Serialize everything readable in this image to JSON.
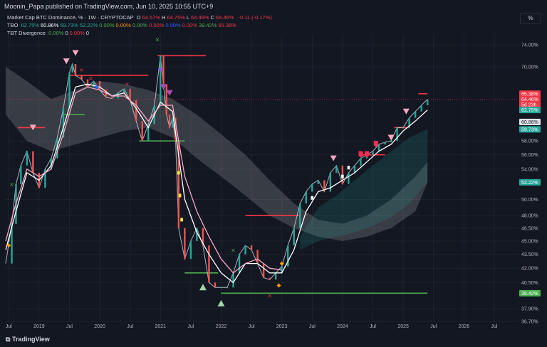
{
  "header": {
    "published": "Moonin_Papa published on TradingView.com, Jun 10, 2025 10:55 UTC+9",
    "percent_button": "%",
    "brand": "TradingView"
  },
  "legend": {
    "symbol": "Market Cap BTC Dominance, % · 1W · CRYPTOCAP",
    "ohlc": [
      {
        "k": "O",
        "v": "64.57%"
      },
      {
        "k": "H",
        "v": "64.75%"
      },
      {
        "k": "L",
        "v": "64.46%"
      },
      {
        "k": "C",
        "v": "64.46%"
      }
    ],
    "change": "-0.11 (-0.17%)",
    "tbo_name": "TBO",
    "tbo_values": [
      {
        "v": "62.75%",
        "color": "#26a69a"
      },
      {
        "v": "60.86%",
        "color": "#ffffff"
      },
      {
        "v": "59.73%",
        "color": "#26a69a"
      },
      {
        "v": "52.22%",
        "color": "#26a69a"
      },
      {
        "v": "0.00%",
        "color": "#4caf50"
      },
      {
        "v": "0.00%",
        "color": "#ff9800"
      },
      {
        "v": "0.00%",
        "color": "#4caf50"
      },
      {
        "v": "0.00%",
        "color": "#f23645"
      },
      {
        "v": "0.00%",
        "color": "#2962ff"
      },
      {
        "v": "0.00%",
        "color": "#f23645"
      },
      {
        "v": "39.42%",
        "color": "#4caf50"
      },
      {
        "v": "65.38%",
        "color": "#f23645"
      }
    ],
    "tbt_name": "TBT Divergence",
    "tbt_values": [
      {
        "v": "0.00%",
        "color": "#4caf50"
      },
      {
        "v": "0",
        "color": "#d1d4dc"
      },
      {
        "v": "0.00%",
        "color": "#f23645"
      },
      {
        "v": "0",
        "color": "#d1d4dc"
      }
    ]
  },
  "chart_data": {
    "type": "line",
    "title": "Market Cap BTC Dominance, % · 1W · CRYPTOCAP",
    "y_scale": "log",
    "ylim": [
      36.7,
      75.5
    ],
    "xlim": [
      2018.45,
      2026.9
    ],
    "x_ticks": [
      {
        "x": 2018.5,
        "label": "Jul"
      },
      {
        "x": 2019.0,
        "label": "2019"
      },
      {
        "x": 2019.5,
        "label": "Jul"
      },
      {
        "x": 2020.0,
        "label": "2020"
      },
      {
        "x": 2020.5,
        "label": "Jul"
      },
      {
        "x": 2021.0,
        "label": "2021"
      },
      {
        "x": 2021.5,
        "label": "Jul"
      },
      {
        "x": 2022.0,
        "label": "2022"
      },
      {
        "x": 2022.5,
        "label": "Jul"
      },
      {
        "x": 2023.0,
        "label": "2023"
      },
      {
        "x": 2023.5,
        "label": "Jul"
      },
      {
        "x": 2024.0,
        "label": "2024"
      },
      {
        "x": 2024.5,
        "label": "Jul"
      },
      {
        "x": 2025.0,
        "label": "2025"
      },
      {
        "x": 2025.5,
        "label": "Jul"
      },
      {
        "x": 2026.0,
        "label": "2026"
      },
      {
        "x": 2026.5,
        "label": "Jul"
      }
    ],
    "y_ticks": [
      {
        "y": 74.0,
        "label": "74.00%"
      },
      {
        "y": 70.0,
        "label": "70.00%"
      },
      {
        "y": 58.0,
        "label": "58.00%"
      },
      {
        "y": 56.0,
        "label": "56.00%"
      },
      {
        "y": 54.0,
        "label": "54.00%"
      },
      {
        "y": 50.0,
        "label": "50.00%"
      },
      {
        "y": 48.0,
        "label": "48.00%"
      },
      {
        "y": 46.5,
        "label": "46.50%"
      },
      {
        "y": 45.0,
        "label": "45.00%"
      },
      {
        "y": 43.5,
        "label": "43.50%"
      },
      {
        "y": 42.0,
        "label": "42.00%"
      },
      {
        "y": 40.5,
        "label": "40.50%"
      },
      {
        "y": 37.9,
        "label": "37.90%"
      },
      {
        "y": 36.7,
        "label": "36.70%"
      }
    ],
    "price_labels": [
      {
        "y": 65.38,
        "label": "65.38%",
        "bg": "#f23645",
        "fg": "#ffffff"
      },
      {
        "y": 64.46,
        "label": "64.46%",
        "bg": "#f23645",
        "fg": "#ffffff"
      },
      {
        "y": 63.6,
        "label": "5d 23h",
        "bg": "#f23645",
        "fg": "#ffffff"
      },
      {
        "y": 62.75,
        "label": "62.75%",
        "bg": "#26a69a",
        "fg": "#ffffff"
      },
      {
        "y": 60.86,
        "label": "60.86%",
        "bg": "#e0e3eb",
        "fg": "#131722"
      },
      {
        "y": 59.73,
        "label": "59.73%",
        "bg": "#26a69a",
        "fg": "#ffffff"
      },
      {
        "y": 52.22,
        "label": "52.22%",
        "bg": "#26a69a",
        "fg": "#ffffff"
      },
      {
        "y": 39.42,
        "label": "39.42%",
        "bg": "#4caf50",
        "fg": "#ffffff"
      }
    ],
    "last_price": 64.46,
    "series": [
      {
        "name": "BTC Dominance",
        "role": "price",
        "color": "#d1d4dc",
        "x": [
          2018.45,
          2018.55,
          2018.62,
          2018.7,
          2018.8,
          2018.9,
          2019.0,
          2019.1,
          2019.2,
          2019.3,
          2019.4,
          2019.5,
          2019.55,
          2019.6,
          2019.7,
          2019.8,
          2019.9,
          2020.0,
          2020.1,
          2020.2,
          2020.3,
          2020.4,
          2020.5,
          2020.6,
          2020.7,
          2020.8,
          2020.9,
          2021.0,
          2021.05,
          2021.1,
          2021.15,
          2021.2,
          2021.25,
          2021.3,
          2021.4,
          2021.5,
          2021.6,
          2021.7,
          2021.8,
          2021.9,
          2022.0,
          2022.1,
          2022.2,
          2022.3,
          2022.4,
          2022.5,
          2022.6,
          2022.7,
          2022.8,
          2022.9,
          2023.0,
          2023.1,
          2023.2,
          2023.3,
          2023.4,
          2023.5,
          2023.6,
          2023.7,
          2023.8,
          2023.9,
          2024.0,
          2024.1,
          2024.2,
          2024.3,
          2024.4,
          2024.5,
          2024.6,
          2024.7,
          2024.8,
          2024.9,
          2025.0,
          2025.1,
          2025.2,
          2025.3,
          2025.4
        ],
        "y": [
          42.5,
          47.0,
          52.0,
          54.5,
          56.5,
          53.5,
          51.5,
          54.0,
          55.5,
          58.5,
          63.0,
          69.0,
          70.5,
          68.5,
          67.8,
          66.5,
          67.5,
          66.0,
          64.8,
          64.6,
          65.5,
          66.2,
          64.3,
          61.0,
          58.0,
          60.5,
          63.5,
          72.0,
          67.0,
          62.0,
          60.0,
          61.5,
          58.0,
          46.5,
          43.0,
          45.0,
          46.5,
          44.5,
          40.5,
          40.0,
          40.0,
          40.0,
          41.5,
          43.5,
          44.5,
          44.0,
          42.5,
          41.0,
          40.8,
          41.5,
          42.2,
          44.5,
          46.5,
          49.5,
          51.0,
          52.0,
          52.5,
          51.0,
          53.5,
          54.5,
          52.0,
          53.5,
          54.5,
          55.5,
          56.0,
          56.5,
          57.5,
          57.8,
          58.0,
          60.0,
          60.0,
          61.5,
          62.5,
          63.5,
          64.46
        ]
      },
      {
        "name": "TBO Fast",
        "role": "fast",
        "color": "#ffffff",
        "x": [
          2018.45,
          2018.6,
          2018.8,
          2019.0,
          2019.2,
          2019.4,
          2019.6,
          2019.8,
          2020.0,
          2020.2,
          2020.4,
          2020.6,
          2020.8,
          2021.0,
          2021.2,
          2021.4,
          2021.6,
          2021.8,
          2022.0,
          2022.2,
          2022.4,
          2022.6,
          2022.8,
          2023.0,
          2023.2,
          2023.4,
          2023.6,
          2023.8,
          2024.0,
          2024.2,
          2024.4,
          2024.6,
          2024.8,
          2025.0,
          2025.2,
          2025.4
        ],
        "y": [
          44.0,
          48.0,
          53.5,
          52.5,
          54.5,
          60.0,
          66.5,
          67.0,
          66.5,
          65.0,
          65.5,
          63.0,
          60.0,
          64.0,
          62.5,
          50.0,
          46.0,
          43.5,
          41.5,
          40.5,
          42.5,
          42.5,
          41.5,
          41.5,
          44.0,
          48.5,
          51.0,
          51.5,
          52.5,
          53.5,
          55.0,
          56.5,
          57.5,
          59.5,
          61.0,
          62.75
        ]
      },
      {
        "name": "TBO Slow",
        "role": "slow",
        "color": "#f7a8c4",
        "x": [
          2018.45,
          2018.6,
          2018.8,
          2019.0,
          2019.2,
          2019.4,
          2019.6,
          2019.8,
          2020.0,
          2020.2,
          2020.4,
          2020.6,
          2020.8,
          2021.0,
          2021.2,
          2021.4,
          2021.6,
          2021.8,
          2022.0,
          2022.2,
          2022.4,
          2022.6,
          2022.8,
          2023.0
        ],
        "y": [
          45.0,
          49.0,
          54.0,
          53.0,
          54.0,
          59.0,
          65.5,
          66.5,
          66.0,
          65.0,
          65.0,
          63.5,
          61.0,
          63.5,
          63.5,
          53.0,
          48.5,
          45.5,
          43.0,
          41.5,
          42.5,
          43.0,
          42.0,
          41.8
        ]
      }
    ],
    "bands": [
      {
        "role": "upper-cloud",
        "color": "#ffffff",
        "opacity": 0.16,
        "x": [
          2018.45,
          2018.8,
          2019.2,
          2019.6,
          2020.0,
          2020.4,
          2020.8,
          2021.2,
          2021.6,
          2022.0,
          2022.4,
          2022.8,
          2023.2,
          2023.6,
          2024.0,
          2024.4,
          2024.8,
          2025.2,
          2025.4
        ],
        "y1": [
          70.0,
          67.5,
          64.5,
          66.0,
          67.5,
          67.0,
          66.0,
          64.5,
          62.0,
          59.0,
          56.0,
          52.5,
          49.5,
          47.5,
          47.0,
          48.0,
          50.0,
          53.0,
          55.0
        ],
        "y2": [
          62.0,
          58.0,
          56.5,
          57.5,
          58.5,
          59.5,
          60.0,
          58.5,
          55.5,
          53.0,
          50.5,
          48.0,
          46.5,
          45.5,
          45.0,
          45.5,
          46.5,
          48.5,
          52.22
        ]
      },
      {
        "role": "trend-cloud",
        "color": "#26a69a",
        "opacity": 0.18,
        "x": [
          2023.3,
          2023.6,
          2023.9,
          2024.2,
          2024.5,
          2024.8,
          2025.1,
          2025.4
        ],
        "y1": [
          45.5,
          49.0,
          50.5,
          52.5,
          54.5,
          56.5,
          58.5,
          59.73
        ],
        "y2": [
          44.0,
          45.0,
          45.5,
          46.0,
          46.8,
          47.8,
          49.5,
          52.22
        ]
      }
    ],
    "levels": [
      {
        "x1": 2018.65,
        "x2": 2019.1,
        "y": 60.0,
        "color": "#f23645"
      },
      {
        "x1": 2019.5,
        "x2": 2020.8,
        "y": 68.5,
        "color": "#f23645"
      },
      {
        "x1": 2019.4,
        "x2": 2019.75,
        "y": 62.0,
        "color": "#4caf50"
      },
      {
        "x1": 2020.65,
        "x2": 2021.4,
        "y": 58.0,
        "color": "#4caf50"
      },
      {
        "x1": 2020.95,
        "x2": 2021.75,
        "y": 72.0,
        "color": "#f23645"
      },
      {
        "x1": 2021.4,
        "x2": 2021.95,
        "y": 41.5,
        "color": "#4caf50"
      },
      {
        "x1": 2022.4,
        "x2": 2023.3,
        "y": 48.0,
        "color": "#f23645"
      },
      {
        "x1": 2022.0,
        "x2": 2025.4,
        "y": 39.42,
        "color": "#4caf50"
      },
      {
        "x1": 2024.3,
        "x2": 2024.7,
        "y": 56.0,
        "color": "#f23645"
      },
      {
        "x1": 2024.85,
        "x2": 2025.1,
        "y": 60.0,
        "color": "#f23645"
      },
      {
        "x1": 2025.25,
        "x2": 2025.4,
        "y": 65.38,
        "color": "#f23645"
      }
    ],
    "markers": [
      {
        "x": 2018.55,
        "y": 52.0,
        "shape": "x",
        "color": "#4caf50"
      },
      {
        "x": 2018.5,
        "y": 44.5,
        "shape": "diamond",
        "color": "#ff9800"
      },
      {
        "x": 2018.9,
        "y": 60.0,
        "shape": "tri-down",
        "color": "#f7a8c4"
      },
      {
        "x": 2019.45,
        "y": 71.0,
        "shape": "tri-down",
        "color": "#f7a8c4"
      },
      {
        "x": 2019.6,
        "y": 72.5,
        "shape": "tri-down",
        "color": "#f7a8c4"
      },
      {
        "x": 2019.7,
        "y": 69.5,
        "shape": "x",
        "color": "#f23645"
      },
      {
        "x": 2019.85,
        "y": 68.0,
        "shape": "x",
        "color": "#f23645"
      },
      {
        "x": 2019.95,
        "y": 66.5,
        "shape": "diamond",
        "color": "#2962ff"
      },
      {
        "x": 2020.1,
        "y": 66.0,
        "shape": "x",
        "color": "#f23645"
      },
      {
        "x": 2020.45,
        "y": 67.0,
        "shape": "x",
        "color": "#f23645"
      },
      {
        "x": 2020.95,
        "y": 75.0,
        "shape": "x",
        "color": "#4caf50"
      },
      {
        "x": 2021.0,
        "y": 69.5,
        "shape": "diamond",
        "color": "#7b61ff"
      },
      {
        "x": 2021.05,
        "y": 66.5,
        "shape": "tri-down",
        "color": "#ab47bc"
      },
      {
        "x": 2021.15,
        "y": 65.5,
        "shape": "tri-down",
        "color": "#ab47bc"
      },
      {
        "x": 2021.3,
        "y": 53.5,
        "shape": "square",
        "color": "#ffeb3b"
      },
      {
        "x": 2021.32,
        "y": 50.5,
        "shape": "square",
        "color": "#ffeb3b"
      },
      {
        "x": 2021.35,
        "y": 47.5,
        "shape": "square",
        "color": "#ffeb3b"
      },
      {
        "x": 2021.7,
        "y": 40.0,
        "shape": "tri-up",
        "color": "#a5d6a7"
      },
      {
        "x": 2022.0,
        "y": 38.4,
        "shape": "tri-up",
        "color": "#a5d6a7"
      },
      {
        "x": 2022.2,
        "y": 44.0,
        "shape": "x",
        "color": "#4caf50"
      },
      {
        "x": 2022.8,
        "y": 39.2,
        "shape": "x",
        "color": "#f23645"
      },
      {
        "x": 2022.95,
        "y": 40.2,
        "shape": "diamond",
        "color": "#ff9800"
      },
      {
        "x": 2023.0,
        "y": 42.5,
        "shape": "diamond",
        "color": "#ff9800"
      },
      {
        "x": 2023.1,
        "y": 42.5,
        "shape": "x",
        "color": "#4caf50"
      },
      {
        "x": 2023.5,
        "y": 50.2,
        "shape": "square",
        "color": "#ffffff"
      },
      {
        "x": 2023.85,
        "y": 55.5,
        "shape": "tri-down",
        "color": "#f7a8c4"
      },
      {
        "x": 2024.0,
        "y": 53.0,
        "shape": "square",
        "color": "#ffffff"
      },
      {
        "x": 2024.1,
        "y": 54.2,
        "shape": "square",
        "color": "#ffffff"
      },
      {
        "x": 2024.3,
        "y": 56.0,
        "shape": "shield",
        "color": "#ff2d55"
      },
      {
        "x": 2024.4,
        "y": 56.0,
        "shape": "shield",
        "color": "#ff2d55"
      },
      {
        "x": 2024.55,
        "y": 57.5,
        "shape": "shield",
        "color": "#ff2d55"
      },
      {
        "x": 2024.8,
        "y": 58.5,
        "shape": "tri-down",
        "color": "#f7a8c4"
      },
      {
        "x": 2025.05,
        "y": 62.5,
        "shape": "tri-down",
        "color": "#f7a8c4"
      }
    ]
  }
}
